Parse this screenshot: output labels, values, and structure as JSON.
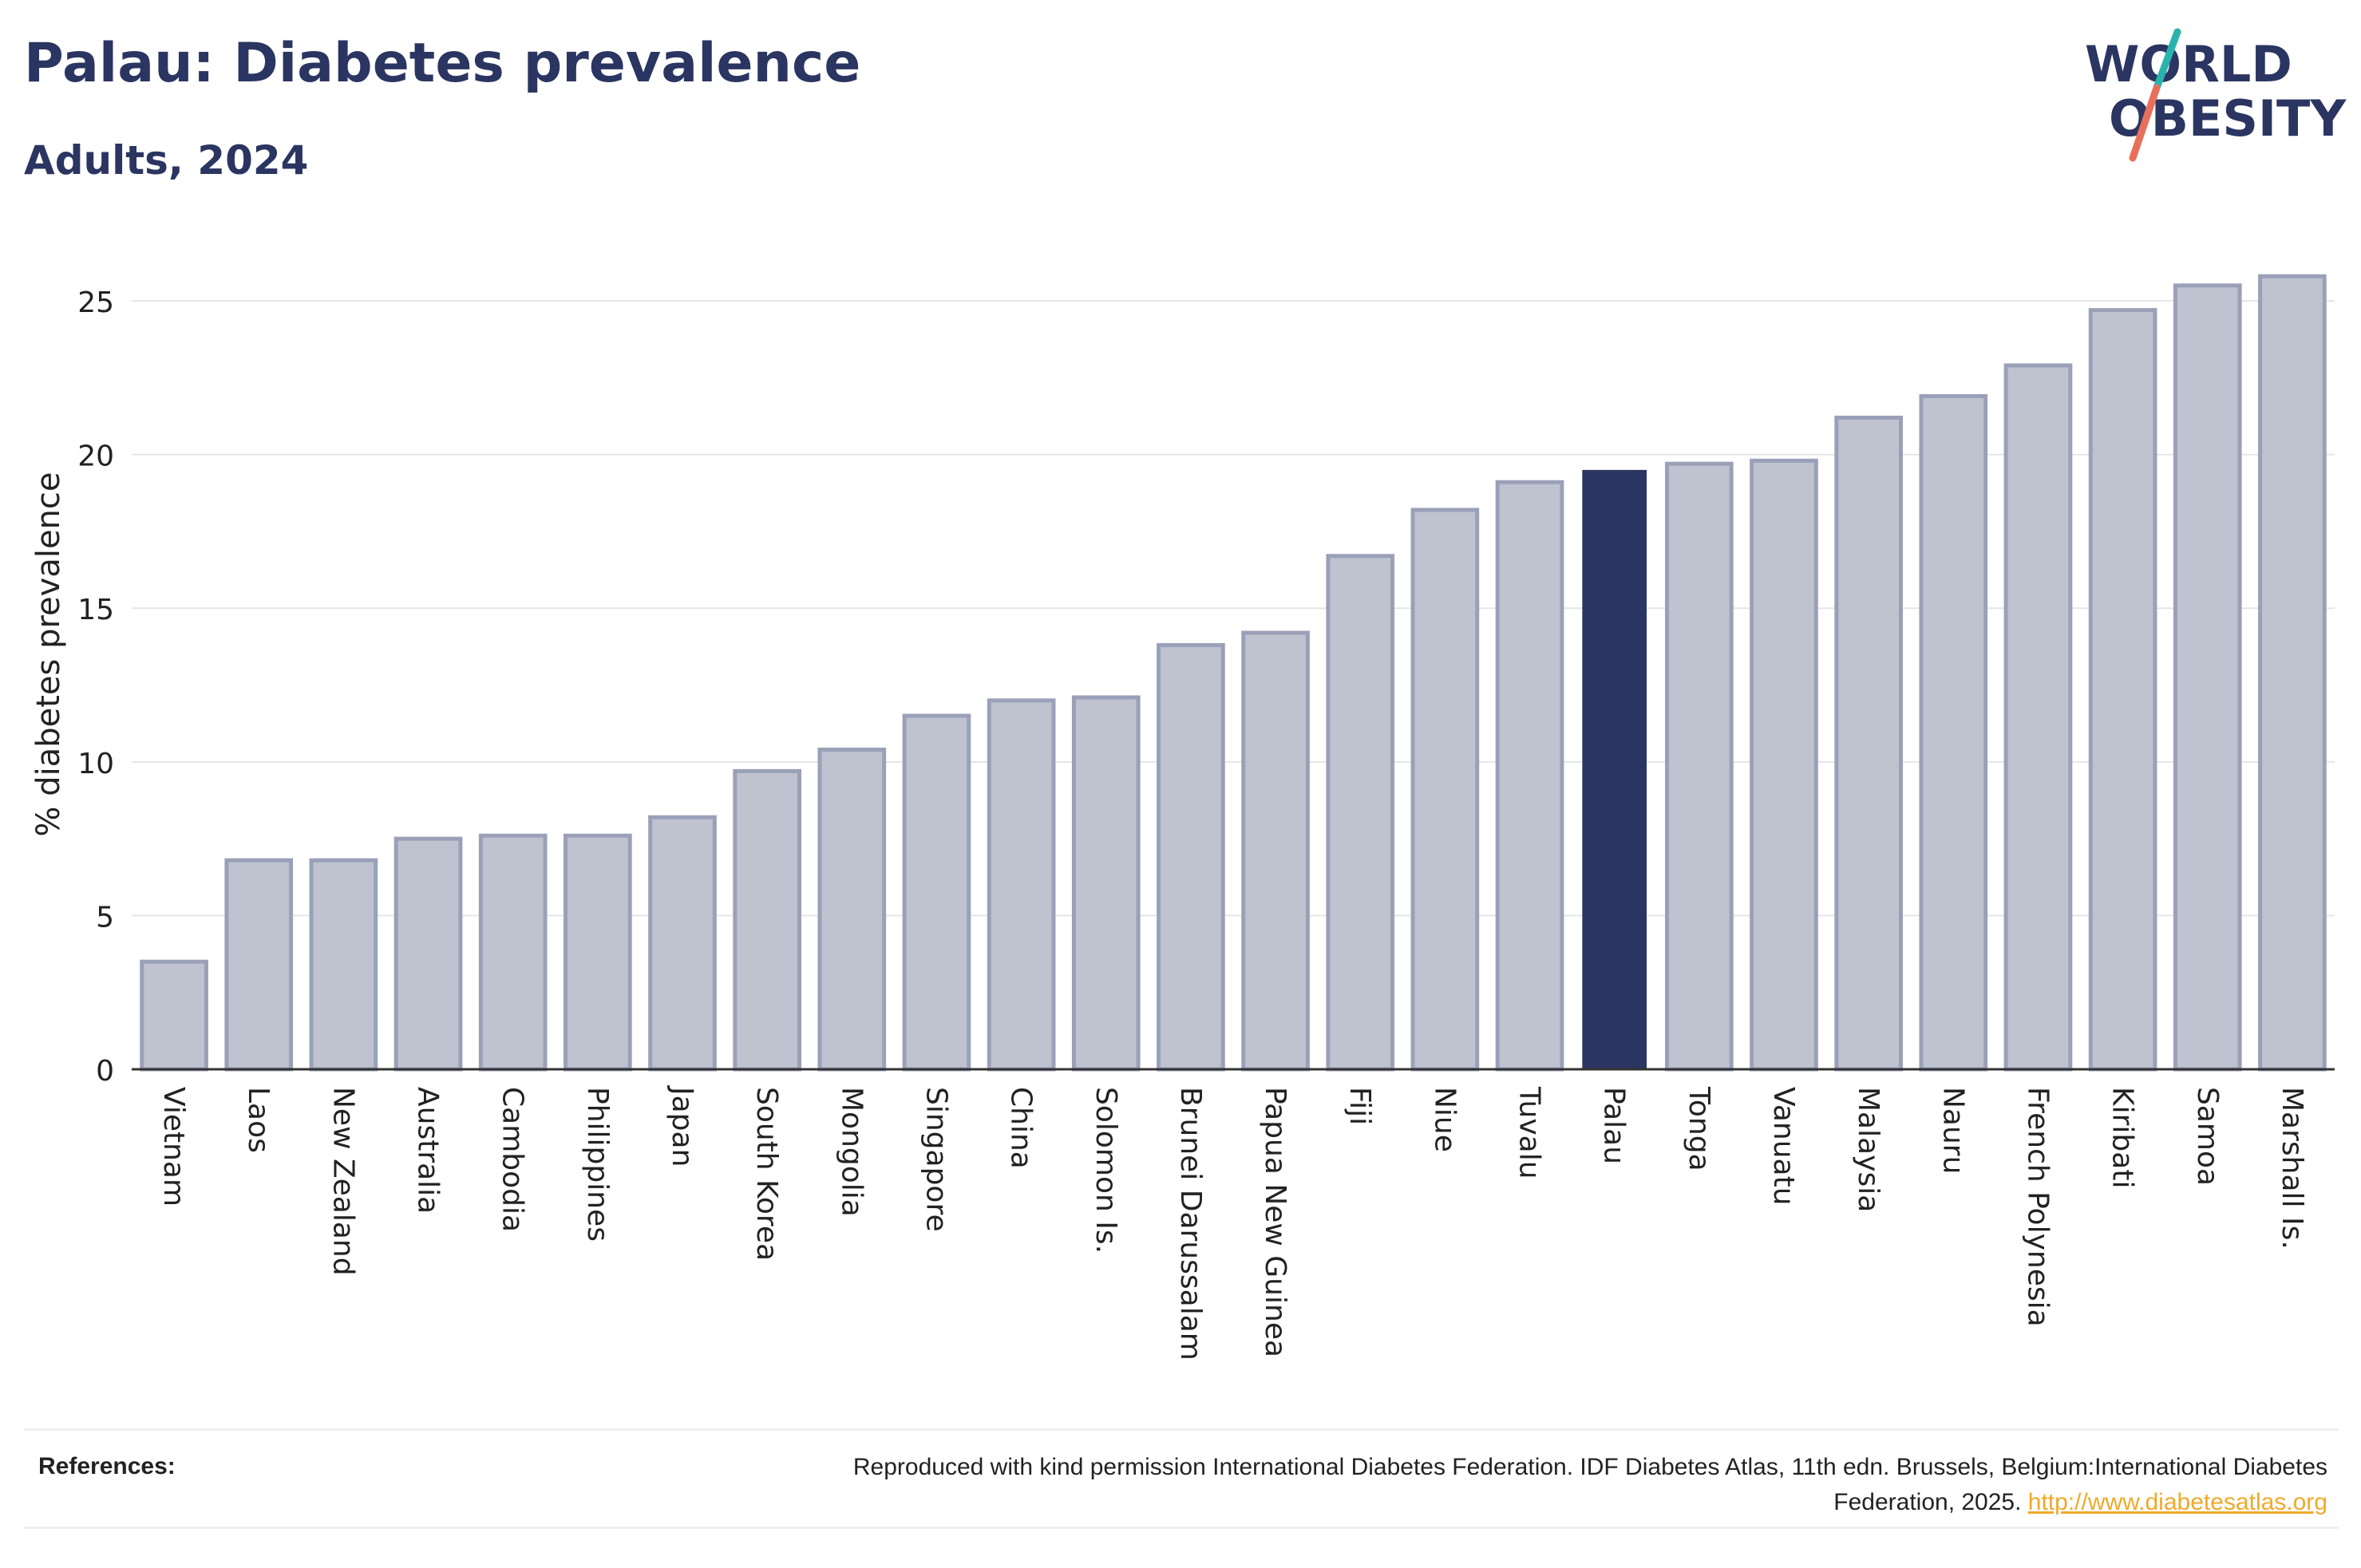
{
  "title": "Palau: Diabetes prevalence",
  "subtitle": "Adults, 2024",
  "logo": {
    "line1": "WORLD",
    "line2": "OBESITY"
  },
  "colors": {
    "bar": "#bfc3d0",
    "bar_border": "#9aa0b8",
    "highlight": "#2b3561",
    "grid": "#e6e6e6",
    "axis": "#333333",
    "title": "#2b3561",
    "link": "#f0a92b",
    "logo_teal": "#2ab3ad",
    "logo_red": "#e8705a"
  },
  "chart_data": {
    "type": "bar",
    "categories": [
      "Vietnam",
      "Laos",
      "New Zealand",
      "Australia",
      "Cambodia",
      "Philippines",
      "Japan",
      "South Korea",
      "Mongolia",
      "Singapore",
      "China",
      "Solomon Is.",
      "Brunei Darussalam",
      "Papua New Guinea",
      "Fiji",
      "Niue",
      "Tuvalu",
      "Palau",
      "Tonga",
      "Vanuatu",
      "Malaysia",
      "Nauru",
      "French Polynesia",
      "Kiribati",
      "Samoa",
      "Marshall Is."
    ],
    "values": [
      3.5,
      6.8,
      6.8,
      7.5,
      7.6,
      7.6,
      8.2,
      9.7,
      10.4,
      11.5,
      12.0,
      12.1,
      13.8,
      14.2,
      16.7,
      18.2,
      19.1,
      19.5,
      19.7,
      19.8,
      21.2,
      21.9,
      22.9,
      24.7,
      25.5,
      25.8
    ],
    "highlight": "Palau",
    "ylabel": "% diabetes prevalence",
    "xlabel": "",
    "ylim": [
      0,
      27
    ],
    "yticks": [
      0,
      5,
      10,
      15,
      20,
      25
    ],
    "grid": true
  },
  "references": {
    "label": "References:",
    "text": "Reproduced with kind permission International Diabetes Federation. IDF Diabetes Atlas, 11th edn. Brussels, Belgium:International Diabetes Federation, 2025.",
    "link": "http://www.diabetesatlas.org"
  }
}
